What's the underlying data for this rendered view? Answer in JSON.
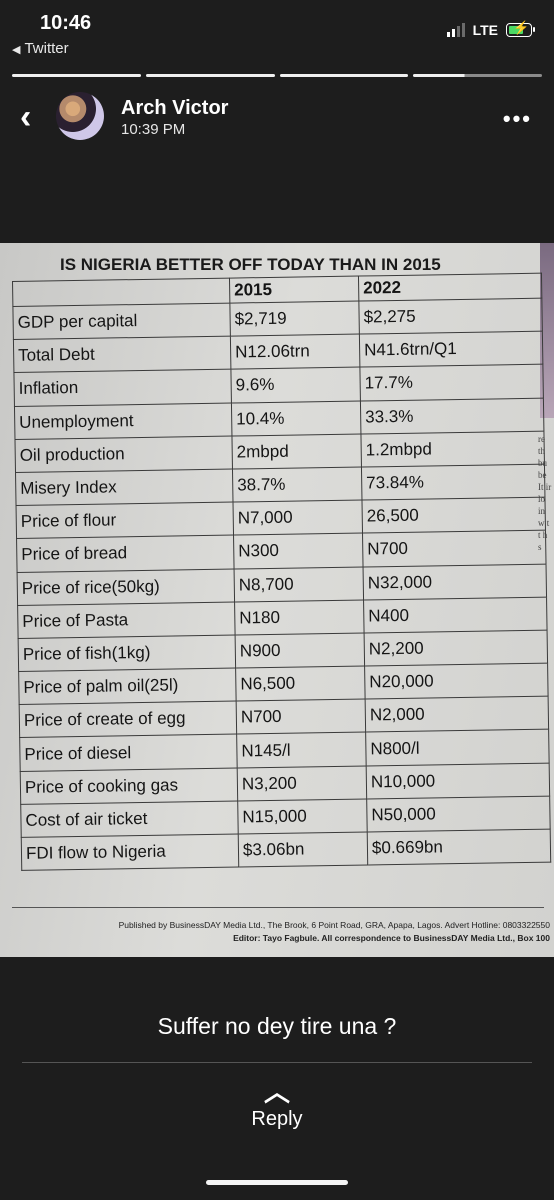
{
  "status": {
    "time": "10:46",
    "back_app": "Twitter",
    "network": "LTE"
  },
  "story": {
    "segments": 4,
    "current_segment_index": 3,
    "current_progress": 0.4
  },
  "header": {
    "author": "Arch Victor",
    "timestamp": "10:39 PM"
  },
  "newspaper": {
    "headline": "IS NIGERIA BETTER OFF TODAY THAN IN 2015",
    "columns": [
      "",
      "2015",
      "2022"
    ],
    "rows": [
      [
        "GDP per capital",
        "$2,719",
        "$2,275"
      ],
      [
        "Total Debt",
        "N12.06trn",
        "N41.6trn/Q1"
      ],
      [
        "Inflation",
        "9.6%",
        "17.7%"
      ],
      [
        "Unemployment",
        "10.4%",
        "33.3%"
      ],
      [
        "Oil production",
        "2mbpd",
        "1.2mbpd"
      ],
      [
        "Misery Index",
        "38.7%",
        "73.84%"
      ],
      [
        "Price of flour",
        "N7,000",
        "26,500"
      ],
      [
        "Price of bread",
        "N300",
        "N700"
      ],
      [
        "Price of rice(50kg)",
        "N8,700",
        "N32,000"
      ],
      [
        "Price of Pasta",
        "N180",
        "N400"
      ],
      [
        "Price of fish(1kg)",
        "N900",
        "N2,200"
      ],
      [
        "Price of palm oil(25l)",
        "N6,500",
        "N20,000"
      ],
      [
        "Price of create of egg",
        "N700",
        "N2,000"
      ],
      [
        "Price of diesel",
        "N145/l",
        "N800/l"
      ],
      [
        "Price of cooking gas",
        "N3,200",
        "N10,000"
      ],
      [
        "Cost of air ticket",
        "N15,000",
        "N50,000"
      ],
      [
        "FDI flow to Nigeria",
        "$3.06bn",
        "$0.669bn"
      ]
    ],
    "footer_line1": "Published by BusinessDAY Media Ltd., The Brook, 6 Point Road, GRA, Apapa, Lagos. Advert Hotline: 0803322550",
    "footer_line2": "Editor: Tayo Fagbule. All correspondence to BusinessDAY Media Ltd., Box 100",
    "side_text": "re th bu be It ir lo in w t t h s"
  },
  "caption": "Suffer no dey tire una ?",
  "reply_label": "Reply"
}
